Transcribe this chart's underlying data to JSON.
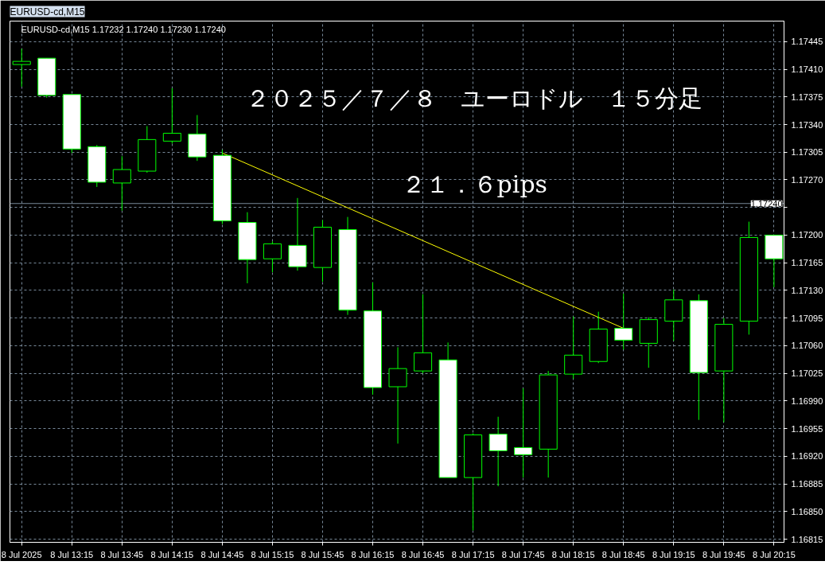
{
  "chart_data": {
    "type": "candlestick",
    "title": "EURUSD-cd,M15",
    "subtitle": "EURUSD-cd,M15 1.17232 1.17240 1.17230 1.17240",
    "annotations": [
      "２０２５／７／８　ユーロドル　１５分足",
      "２１．６pips"
    ],
    "x": [
      "2025-07-08T12:45",
      "2025-07-08T13:00",
      "2025-07-08T13:15",
      "2025-07-08T13:30",
      "2025-07-08T13:45",
      "2025-07-08T14:00",
      "2025-07-08T14:15",
      "2025-07-08T14:30",
      "2025-07-08T14:45",
      "2025-07-08T15:00",
      "2025-07-08T15:15",
      "2025-07-08T15:30",
      "2025-07-08T15:45",
      "2025-07-08T16:00",
      "2025-07-08T16:15",
      "2025-07-08T16:30",
      "2025-07-08T16:45",
      "2025-07-08T17:00",
      "2025-07-08T17:15",
      "2025-07-08T17:30",
      "2025-07-08T17:45",
      "2025-07-08T18:00",
      "2025-07-08T18:15",
      "2025-07-08T18:30",
      "2025-07-08T18:45",
      "2025-07-08T19:00",
      "2025-07-08T19:15",
      "2025-07-08T19:30",
      "2025-07-08T19:45",
      "2025-07-08T20:00",
      "2025-07-08T20:15"
    ],
    "ohlc": [
      [
        1.17416,
        1.17436,
        1.17388,
        1.1742
      ],
      [
        1.17424,
        1.17424,
        1.17374,
        1.17377
      ],
      [
        1.17378,
        1.17378,
        1.17304,
        1.17309
      ],
      [
        1.17312,
        1.17314,
        1.17261,
        1.17267
      ],
      [
        1.17266,
        1.173,
        1.17231,
        1.17283
      ],
      [
        1.17281,
        1.17338,
        1.17279,
        1.17321
      ],
      [
        1.17319,
        1.17386,
        1.17316,
        1.17329
      ],
      [
        1.17328,
        1.17352,
        1.17294,
        1.17299
      ],
      [
        1.17301,
        1.17308,
        1.17214,
        1.17218
      ],
      [
        1.17216,
        1.17229,
        1.17139,
        1.17169
      ],
      [
        1.1717,
        1.17192,
        1.17153,
        1.17189
      ],
      [
        1.17187,
        1.17247,
        1.17155,
        1.1716
      ],
      [
        1.17159,
        1.17219,
        1.17141,
        1.1721
      ],
      [
        1.17207,
        1.17223,
        1.17099,
        1.17105
      ],
      [
        1.17104,
        1.1714,
        1.16998,
        1.17007
      ],
      [
        1.17008,
        1.17058,
        1.16936,
        1.17031
      ],
      [
        1.17028,
        1.17125,
        1.17025,
        1.17051
      ],
      [
        1.17042,
        1.17064,
        1.16893,
        1.16893
      ],
      [
        1.16893,
        1.16949,
        1.16826,
        1.16947
      ],
      [
        1.16948,
        1.1697,
        1.16882,
        1.16927
      ],
      [
        1.16931,
        1.17006,
        1.16893,
        1.16922
      ],
      [
        1.16929,
        1.17028,
        1.16893,
        1.17023
      ],
      [
        1.17024,
        1.17097,
        1.17018,
        1.17048
      ],
      [
        1.1704,
        1.17103,
        1.17038,
        1.17081
      ],
      [
        1.17082,
        1.17126,
        1.17055,
        1.17067
      ],
      [
        1.17063,
        1.17096,
        1.17032,
        1.17093
      ],
      [
        1.17091,
        1.17131,
        1.17066,
        1.17118
      ],
      [
        1.17117,
        1.17125,
        1.16966,
        1.17026
      ],
      [
        1.17028,
        1.17095,
        1.16963,
        1.17087
      ],
      [
        1.17091,
        1.17217,
        1.17074,
        1.17197
      ],
      [
        1.172,
        1.172,
        1.17134,
        1.1717
      ]
    ],
    "color": "#00ff00",
    "colors": [
      "#000000",
      "#ffffff",
      "#ffffff",
      "#ffffff",
      "#000000",
      "#000000",
      "#000000",
      "#ffffff",
      "#ffffff",
      "#ffffff",
      "#000000",
      "#ffffff",
      "#000000",
      "#ffffff",
      "#ffffff",
      "#000000",
      "#000000",
      "#ffffff",
      "#000000",
      "#ffffff",
      "#ffffff",
      "#000000",
      "#000000",
      "#000000",
      "#ffffff",
      "#000000",
      "#000000",
      "#ffffff",
      "#000000",
      "#000000",
      "#ffffff"
    ],
    "series": [
      {
        "type": "line",
        "x": [
          "2025-07-08T14:45",
          "2025-07-08T18:45"
        ],
        "values": [
          1.17304,
          1.17082
        ],
        "color": "#ffff00"
      }
    ],
    "xlim": [
      "2025-07-08T12:38",
      "2025-07-08T20:21"
    ],
    "xticks": [
      {
        "value": "2025-07-08T12:45",
        "label": "8 Jul 2025"
      },
      {
        "value": "2025-07-08T13:15",
        "label": "8 Jul 13:15"
      },
      {
        "value": "2025-07-08T13:45",
        "label": "8 Jul 13:45"
      },
      {
        "value": "2025-07-08T14:15",
        "label": "8 Jul 14:15"
      },
      {
        "value": "2025-07-08T14:45",
        "label": "8 Jul 14:45"
      },
      {
        "value": "2025-07-08T15:15",
        "label": "8 Jul 15:15"
      },
      {
        "value": "2025-07-08T15:45",
        "label": "8 Jul 15:45"
      },
      {
        "value": "2025-07-08T16:15",
        "label": "8 Jul 16:15"
      },
      {
        "value": "2025-07-08T16:45",
        "label": "8 Jul 16:45"
      },
      {
        "value": "2025-07-08T17:15",
        "label": "8 Jul 17:15"
      },
      {
        "value": "2025-07-08T17:45",
        "label": "8 Jul 17:45"
      },
      {
        "value": "2025-07-08T18:15",
        "label": "8 Jul 18:15"
      },
      {
        "value": "2025-07-08T18:45",
        "label": "8 Jul 18:45"
      },
      {
        "value": "2025-07-08T19:15",
        "label": "8 Jul 19:15"
      },
      {
        "value": "2025-07-08T19:45",
        "label": "8 Jul 19:45"
      },
      {
        "value": "2025-07-08T20:15",
        "label": "8 Jul 20:15"
      }
    ],
    "ylim": [
      1.16811,
      1.17471
    ],
    "yticks": [
      1.17445,
      {
        "value": 1.1741,
        "label": "1.17410"
      },
      1.17375,
      {
        "value": 1.1734,
        "label": "1.17340"
      },
      1.17305,
      {
        "value": 1.1727,
        "label": "1.17270"
      },
      {
        "value": 1.17235,
        "label": null
      },
      {
        "value": 1.172,
        "label": "1.17200"
      },
      1.17165,
      {
        "value": 1.1713,
        "label": "1.17130"
      },
      1.17095,
      {
        "value": 1.1706,
        "label": "1.17060"
      },
      1.17025,
      {
        "value": 1.1699,
        "label": "1.16990"
      },
      1.16955,
      {
        "value": 1.1692,
        "label": "1.16920"
      },
      1.16885,
      {
        "value": 1.1685,
        "label": "1.16850"
      },
      1.16815
    ],
    "ref_lines": [
      {
        "axis": "y",
        "value": 1.1724,
        "label": "1.17240",
        "color": "#778899",
        "line_style": "solid"
      }
    ],
    "grid": true
  }
}
